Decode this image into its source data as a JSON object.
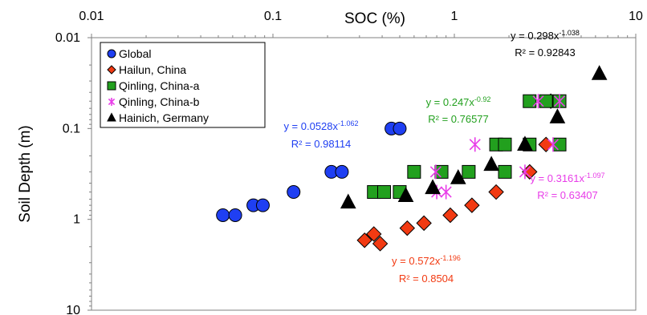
{
  "chart_data": {
    "type": "scatter",
    "xlabel": "SOC (%)",
    "ylabel": "Soil Depth (m)",
    "x_scale": "log",
    "y_scale": "log",
    "y_inverted": true,
    "xlim": [
      0.01,
      10
    ],
    "ylim": [
      0.01,
      10
    ],
    "x_ticks": [
      "0.01",
      "0.1",
      "1",
      "10"
    ],
    "y_ticks": [
      "0.01",
      "0.1",
      "1",
      "10"
    ],
    "grid": false,
    "legend_position": "top-left",
    "series": [
      {
        "name": "Global",
        "marker": "circle",
        "color": "#1f3ff2",
        "points": [
          [
            0.053,
            0.9
          ],
          [
            0.062,
            0.9
          ],
          [
            0.078,
            0.7
          ],
          [
            0.088,
            0.7
          ],
          [
            0.13,
            0.5
          ],
          [
            0.21,
            0.3
          ],
          [
            0.24,
            0.3
          ],
          [
            0.45,
            0.1
          ],
          [
            0.5,
            0.1
          ]
        ],
        "fit": {
          "equation": "y = 0.0528x",
          "exponent": "-1.062",
          "r2": "R² = 0.98114",
          "color": "#1f3ff2"
        }
      },
      {
        "name": "Hailun, China",
        "marker": "diamond",
        "color": "#f23a12",
        "points": [
          [
            0.32,
            1.7
          ],
          [
            0.36,
            1.45
          ],
          [
            0.39,
            1.85
          ],
          [
            0.55,
            1.25
          ],
          [
            0.68,
            1.1
          ],
          [
            0.95,
            0.9
          ],
          [
            1.25,
            0.7
          ],
          [
            1.7,
            0.5
          ],
          [
            2.6,
            0.3
          ],
          [
            3.2,
            0.15
          ],
          [
            3.4,
            0.05
          ]
        ],
        "fit": {
          "equation": "y = 0.572x",
          "exponent": "-1.196",
          "r2": "R² = 0.8504",
          "color": "#f23a12"
        }
      },
      {
        "name": "Qinling, China-a",
        "marker": "square",
        "color": "#22a01e",
        "points": [
          [
            0.36,
            0.5
          ],
          [
            0.41,
            0.5
          ],
          [
            0.5,
            0.5
          ],
          [
            0.6,
            0.3
          ],
          [
            0.85,
            0.3
          ],
          [
            1.2,
            0.3
          ],
          [
            1.9,
            0.3
          ],
          [
            1.7,
            0.15
          ],
          [
            1.9,
            0.15
          ],
          [
            2.6,
            0.15
          ],
          [
            3.8,
            0.15
          ],
          [
            2.6,
            0.05
          ],
          [
            3.2,
            0.05
          ],
          [
            3.8,
            0.05
          ]
        ],
        "fit": {
          "equation": "y = 0.247x",
          "exponent": "-0.92",
          "r2": "R² = 0.76577",
          "color": "#22a01e"
        }
      },
      {
        "name": "Qinling, China-b",
        "marker": "asterisk",
        "color": "#e83ce8",
        "points": [
          [
            0.79,
            0.3
          ],
          [
            0.8,
            0.5
          ],
          [
            0.9,
            0.5
          ],
          [
            1.3,
            0.15
          ],
          [
            2.45,
            0.3
          ],
          [
            3.5,
            0.15
          ],
          [
            2.9,
            0.05
          ],
          [
            3.8,
            0.05
          ]
        ],
        "fit": {
          "equation": "y = 0.3161x",
          "exponent": "-1.097",
          "r2": "R² = 0.63407",
          "color": "#e83ce8"
        }
      },
      {
        "name": "Hainich, Germany",
        "marker": "triangle",
        "color": "#000000",
        "points": [
          [
            0.26,
            0.65
          ],
          [
            0.54,
            0.55
          ],
          [
            0.76,
            0.45
          ],
          [
            1.05,
            0.35
          ],
          [
            1.6,
            0.25
          ],
          [
            2.45,
            0.15
          ],
          [
            3.7,
            0.075
          ],
          [
            6.3,
            0.025
          ]
        ],
        "fit": {
          "equation": "y = 0.298x",
          "exponent": "-1.038",
          "r2": "R² = 0.92843",
          "color": "#000000"
        }
      }
    ]
  }
}
